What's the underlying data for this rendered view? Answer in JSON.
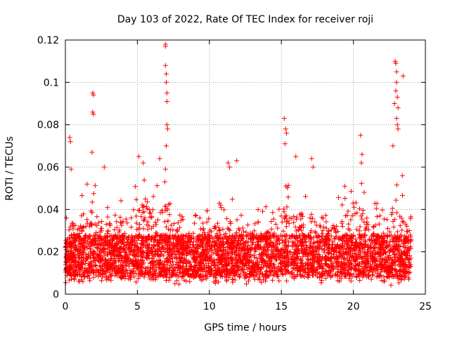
{
  "chart_data": {
    "type": "scatter",
    "title": "Day 103 of 2022, Rate Of TEC Index for receiver roji",
    "xlabel": "GPS time / hours",
    "ylabel": "ROTI / TECUs",
    "xlim": [
      0,
      25
    ],
    "ylim": [
      0,
      0.12
    ],
    "xticks": [
      0,
      5,
      10,
      15,
      20,
      25
    ],
    "yticks": [
      0,
      0.02,
      0.04,
      0.06,
      0.08,
      0.1,
      0.12
    ],
    "grid": true,
    "marker": "+",
    "color": "#ff0000",
    "data_extent_hours": [
      0,
      24
    ],
    "description_of_points": "dense cloud of ROTI samples mostly between 0.005 and 0.035 TECU/s across 0-24 h",
    "notable_points": [
      {
        "x": 0.3,
        "y": 0.074
      },
      {
        "x": 0.35,
        "y": 0.072
      },
      {
        "x": 0.4,
        "y": 0.059
      },
      {
        "x": 1.9,
        "y": 0.095
      },
      {
        "x": 1.95,
        "y": 0.094
      },
      {
        "x": 1.9,
        "y": 0.086
      },
      {
        "x": 1.95,
        "y": 0.085
      },
      {
        "x": 1.85,
        "y": 0.067
      },
      {
        "x": 2.7,
        "y": 0.06
      },
      {
        "x": 5.1,
        "y": 0.065
      },
      {
        "x": 5.4,
        "y": 0.062
      },
      {
        "x": 6.55,
        "y": 0.064
      },
      {
        "x": 6.95,
        "y": 0.118
      },
      {
        "x": 6.95,
        "y": 0.117
      },
      {
        "x": 6.95,
        "y": 0.108
      },
      {
        "x": 7.0,
        "y": 0.104
      },
      {
        "x": 7.0,
        "y": 0.1
      },
      {
        "x": 7.05,
        "y": 0.095
      },
      {
        "x": 7.05,
        "y": 0.091
      },
      {
        "x": 7.05,
        "y": 0.08
      },
      {
        "x": 7.1,
        "y": 0.078
      },
      {
        "x": 7.0,
        "y": 0.07
      },
      {
        "x": 6.95,
        "y": 0.059
      },
      {
        "x": 11.3,
        "y": 0.062
      },
      {
        "x": 11.4,
        "y": 0.06
      },
      {
        "x": 11.9,
        "y": 0.063
      },
      {
        "x": 15.2,
        "y": 0.083
      },
      {
        "x": 15.3,
        "y": 0.078
      },
      {
        "x": 15.35,
        "y": 0.076
      },
      {
        "x": 15.25,
        "y": 0.071
      },
      {
        "x": 16.0,
        "y": 0.065
      },
      {
        "x": 17.1,
        "y": 0.064
      },
      {
        "x": 17.2,
        "y": 0.06
      },
      {
        "x": 20.5,
        "y": 0.075
      },
      {
        "x": 20.6,
        "y": 0.066
      },
      {
        "x": 20.55,
        "y": 0.062
      },
      {
        "x": 22.9,
        "y": 0.11
      },
      {
        "x": 22.95,
        "y": 0.109
      },
      {
        "x": 23.0,
        "y": 0.105
      },
      {
        "x": 23.0,
        "y": 0.1
      },
      {
        "x": 22.95,
        "y": 0.096
      },
      {
        "x": 23.05,
        "y": 0.093
      },
      {
        "x": 22.85,
        "y": 0.09
      },
      {
        "x": 23.1,
        "y": 0.088
      },
      {
        "x": 23.0,
        "y": 0.083
      },
      {
        "x": 23.05,
        "y": 0.08
      },
      {
        "x": 23.1,
        "y": 0.078
      },
      {
        "x": 23.45,
        "y": 0.103
      },
      {
        "x": 22.75,
        "y": 0.07
      },
      {
        "x": 23.4,
        "y": 0.056
      }
    ]
  }
}
